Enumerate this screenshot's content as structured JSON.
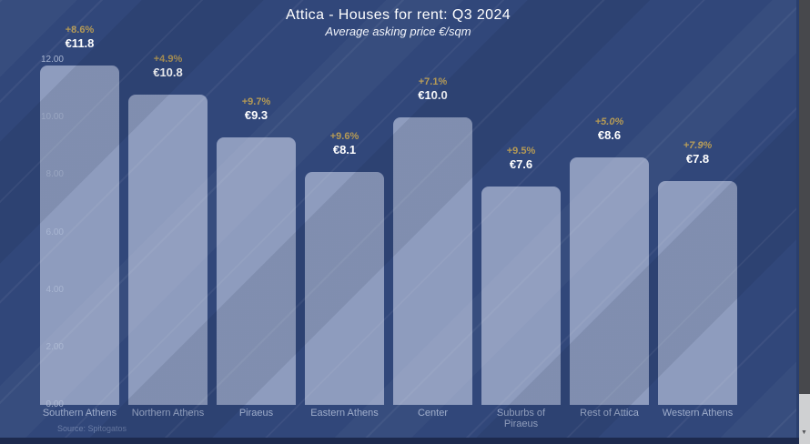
{
  "chart_data": {
    "type": "bar",
    "title": "Attica - Houses for rent: Q3 2024",
    "subtitle": "Average asking price €/sqm",
    "categories": [
      "Southern Athens",
      "Northern Athens",
      "Piraeus",
      "Eastern Athens",
      "Center",
      "Suburbs of Piraeus",
      "Rest of Attica",
      "Western Athens"
    ],
    "series": [
      {
        "name": "Average asking price €/sqm",
        "values": [
          11.8,
          10.8,
          9.3,
          8.1,
          10.0,
          7.6,
          8.6,
          7.8
        ]
      }
    ],
    "value_labels": [
      "€11.8",
      "€10.8",
      "€9.3",
      "€8.1",
      "€10.0",
      "€7.6",
      "€8.6",
      "€7.8"
    ],
    "pct_change": [
      "+8.6%",
      "+4.9%",
      "+9.7%",
      "+9.6%",
      "+7.1%",
      "+9.5%",
      "+5.0%",
      "+7.9%"
    ],
    "pct_italic": [
      false,
      false,
      false,
      false,
      false,
      false,
      true,
      true
    ],
    "ylim": [
      0,
      12
    ],
    "y_tick_labels": [
      "0.00",
      "2.00",
      "4.00",
      "6.00",
      "8.00",
      "10.00",
      "12.00"
    ],
    "grid": false,
    "legend": "none",
    "source": "Source: Spitogatos",
    "colors": {
      "background": "#31477a",
      "bar": "#8e9cbe",
      "value_label": "#ffffff",
      "pct_label": "#b59a55",
      "axis_label": "#9fadcb",
      "title": "#ffffff"
    }
  }
}
